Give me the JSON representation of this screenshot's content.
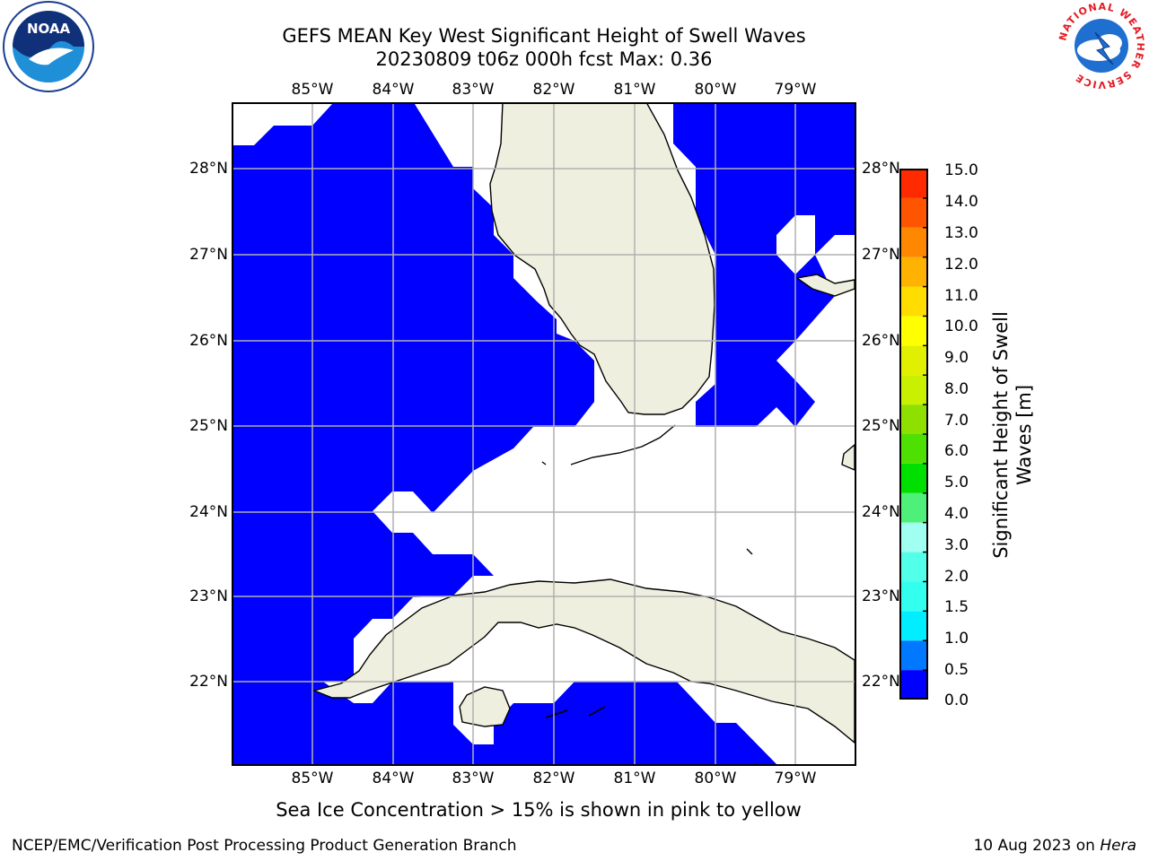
{
  "title": {
    "line1": "GEFS MEAN Key West Significant Height of Swell Waves",
    "line2": "20230809 t06z 000h fcst   Max: 0.36"
  },
  "map": {
    "lon_labels": [
      "85°W",
      "84°W",
      "83°W",
      "82°W",
      "81°W",
      "80°W",
      "79°W"
    ],
    "lat_labels": [
      "28°N",
      "27°N",
      "26°N",
      "25°N",
      "24°N",
      "23°N",
      "22°N"
    ],
    "field_color": "#0000ff",
    "land_color": "#efefdf",
    "grid_color": "#b0b0b0",
    "field_value_max": 0.36
  },
  "colorbar": {
    "title_line1": "Significant Height of Swell",
    "title_line2": "Waves [m]",
    "tick_labels": [
      "15.0",
      "14.0",
      "13.0",
      "12.0",
      "11.0",
      "10.0",
      "9.0",
      "8.0",
      "7.0",
      "6.0",
      "5.0",
      "4.0",
      "3.0",
      "2.0",
      "1.5",
      "1.0",
      "0.5",
      "0.0"
    ],
    "bin_colors_bottom_to_top": [
      "#0000ff",
      "#0078ff",
      "#00eeff",
      "#33ffee",
      "#52ffe8",
      "#a0fff0",
      "#4ff07a",
      "#00e000",
      "#4ee000",
      "#8ee000",
      "#c8f000",
      "#e0f000",
      "#ffff00",
      "#ffdd00",
      "#ffb300",
      "#ff8800",
      "#ff5500",
      "#ff2a00",
      "#ff0000"
    ]
  },
  "subtitle": "Sea Ice Concentration > 15% is shown in pink to yellow",
  "footer": {
    "left": "NCEP/EMC/Verification Post Processing Product Generation Branch",
    "date": "10 Aug 2023 on ",
    "system": "Hera"
  },
  "logos": {
    "noaa_text": "NOAA",
    "nws_ring_text": "NATIONAL WEATHER SERVICE"
  }
}
